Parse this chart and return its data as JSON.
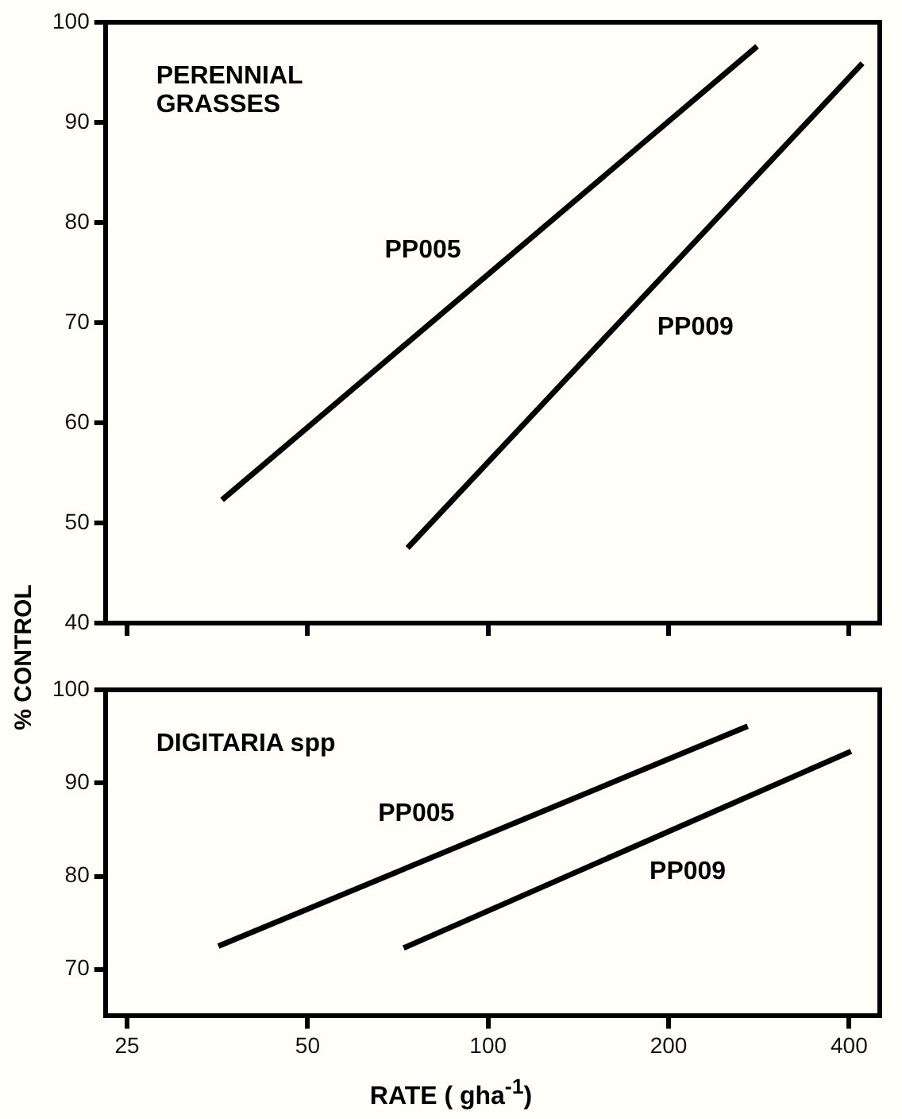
{
  "chart_data": [
    {
      "type": "line",
      "title": "PERENNIAL GRASSES",
      "ylabel": "% CONTROL",
      "log": "x",
      "xlim": [
        23,
        450
      ],
      "xticks": [
        25,
        50,
        100,
        200,
        400
      ],
      "ylim": [
        40,
        100
      ],
      "yticks": [
        40,
        50,
        60,
        70,
        80,
        90,
        100
      ],
      "tick_labels": "y",
      "grid": false,
      "legend": false,
      "marker": "none",
      "line_style": "solid",
      "series": [
        {
          "name": "PP005",
          "color": "#000000",
          "x": [
            36,
            281
          ],
          "values": [
            52.3,
            97.6
          ]
        },
        {
          "name": "PP009",
          "color": "#000000",
          "x": [
            73.4,
            421
          ],
          "values": [
            47.5,
            95.9
          ]
        }
      ]
    },
    {
      "type": "line",
      "title": "DIGITARIA spp",
      "xlabel": "RATE ( gha$^{-1}$)",
      "log": "x",
      "xlim": [
        23,
        450
      ],
      "xticks": [
        25,
        50,
        100,
        200,
        400
      ],
      "ylim": [
        65,
        100
      ],
      "yticks": [
        70,
        80,
        90,
        100
      ],
      "grid": false,
      "legend": false,
      "marker": "none",
      "line_style": "solid",
      "series": [
        {
          "name": "PP005",
          "color": "#000000",
          "x": [
            35.5,
            271
          ],
          "values": [
            72.5,
            96.1
          ]
        },
        {
          "name": "PP009",
          "color": "#000000",
          "x": [
            72.3,
            403
          ],
          "values": [
            72.3,
            93.4
          ]
        }
      ]
    }
  ]
}
